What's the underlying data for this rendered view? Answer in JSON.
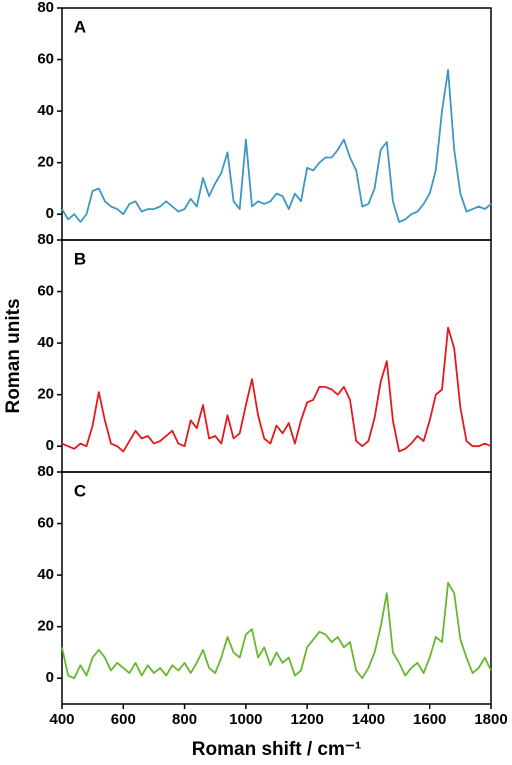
{
  "chart_data": [
    {
      "type": "line",
      "panel_label": "A",
      "xlim": [
        400,
        1800
      ],
      "ylim": [
        -10,
        80
      ],
      "yticks": [
        0,
        20,
        40,
        60,
        80
      ],
      "x": [
        400,
        420,
        440,
        460,
        480,
        500,
        520,
        540,
        560,
        580,
        600,
        620,
        640,
        660,
        680,
        700,
        720,
        740,
        760,
        780,
        800,
        820,
        840,
        860,
        880,
        900,
        920,
        940,
        960,
        980,
        1000,
        1020,
        1040,
        1060,
        1080,
        1100,
        1120,
        1140,
        1160,
        1180,
        1200,
        1220,
        1240,
        1260,
        1280,
        1300,
        1320,
        1340,
        1360,
        1380,
        1400,
        1420,
        1440,
        1460,
        1480,
        1500,
        1520,
        1540,
        1560,
        1580,
        1600,
        1620,
        1640,
        1660,
        1680,
        1700,
        1720,
        1740,
        1760,
        1780,
        1800
      ],
      "series": [
        {
          "color": "#3d97c4",
          "values": [
            2,
            -2,
            0,
            -3,
            0,
            9,
            10,
            5,
            3,
            2,
            0,
            4,
            5,
            1,
            2,
            2,
            3,
            5,
            3,
            1,
            2,
            6,
            3,
            14,
            7,
            12,
            16,
            24,
            5,
            2,
            29,
            3,
            5,
            4,
            5,
            8,
            7,
            2,
            8,
            5,
            18,
            17,
            20,
            22,
            22,
            25,
            29,
            22,
            17,
            3,
            4,
            10,
            25,
            28,
            5,
            -3,
            -2,
            0,
            1,
            4,
            8,
            17,
            40,
            56,
            25,
            8,
            1,
            2,
            3,
            2,
            4
          ]
        }
      ]
    },
    {
      "type": "line",
      "panel_label": "B",
      "y_label": "Roman units",
      "xlim": [
        400,
        1800
      ],
      "ylim": [
        -10,
        80
      ],
      "yticks": [
        0,
        20,
        40,
        60,
        80
      ],
      "x": [
        400,
        420,
        440,
        460,
        480,
        500,
        520,
        540,
        560,
        580,
        600,
        620,
        640,
        660,
        680,
        700,
        720,
        740,
        760,
        780,
        800,
        820,
        840,
        860,
        880,
        900,
        920,
        940,
        960,
        980,
        1000,
        1020,
        1040,
        1060,
        1080,
        1100,
        1120,
        1140,
        1160,
        1180,
        1200,
        1220,
        1240,
        1260,
        1280,
        1300,
        1320,
        1340,
        1360,
        1380,
        1400,
        1420,
        1440,
        1460,
        1480,
        1500,
        1520,
        1540,
        1560,
        1580,
        1600,
        1620,
        1640,
        1660,
        1680,
        1700,
        1720,
        1740,
        1760,
        1780,
        1800
      ],
      "series": [
        {
          "color": "#e31a1c",
          "values": [
            1,
            0,
            -1,
            1,
            0,
            8,
            21,
            10,
            1,
            0,
            -2,
            2,
            6,
            3,
            4,
            1,
            2,
            4,
            6,
            1,
            0,
            10,
            7,
            16,
            3,
            4,
            1,
            12,
            3,
            5,
            16,
            26,
            12,
            3,
            1,
            8,
            5,
            9,
            1,
            10,
            17,
            18,
            23,
            23,
            22,
            20,
            23,
            18,
            2,
            0,
            2,
            11,
            25,
            33,
            10,
            -2,
            -1,
            1,
            4,
            2,
            10,
            20,
            22,
            46,
            38,
            15,
            2,
            0,
            0,
            1,
            0
          ]
        }
      ]
    },
    {
      "type": "line",
      "panel_label": "C",
      "x_label": "Roman shift / cm⁻¹",
      "xlim": [
        400,
        1800
      ],
      "ylim": [
        -10,
        80
      ],
      "yticks": [
        0,
        20,
        40,
        60,
        80
      ],
      "xticks": [
        400,
        600,
        800,
        1000,
        1200,
        1400,
        1600,
        1800
      ],
      "x": [
        400,
        420,
        440,
        460,
        480,
        500,
        520,
        540,
        560,
        580,
        600,
        620,
        640,
        660,
        680,
        700,
        720,
        740,
        760,
        780,
        800,
        820,
        840,
        860,
        880,
        900,
        920,
        940,
        960,
        980,
        1000,
        1020,
        1040,
        1060,
        1080,
        1100,
        1120,
        1140,
        1160,
        1180,
        1200,
        1220,
        1240,
        1260,
        1280,
        1300,
        1320,
        1340,
        1360,
        1380,
        1400,
        1420,
        1440,
        1460,
        1480,
        1500,
        1520,
        1540,
        1560,
        1580,
        1600,
        1620,
        1640,
        1660,
        1680,
        1700,
        1720,
        1740,
        1760,
        1780,
        1800
      ],
      "series": [
        {
          "color": "#66b82e",
          "values": [
            12,
            1,
            0,
            5,
            1,
            8,
            11,
            8,
            3,
            6,
            4,
            2,
            6,
            1,
            5,
            2,
            4,
            1,
            5,
            3,
            6,
            2,
            6,
            11,
            4,
            2,
            8,
            16,
            10,
            8,
            17,
            19,
            8,
            12,
            5,
            10,
            6,
            8,
            1,
            3,
            12,
            15,
            18,
            17,
            14,
            16,
            12,
            14,
            3,
            0,
            4,
            10,
            20,
            33,
            10,
            6,
            1,
            4,
            6,
            2,
            8,
            16,
            14,
            37,
            33,
            15,
            8,
            2,
            4,
            8,
            3
          ]
        }
      ]
    }
  ]
}
